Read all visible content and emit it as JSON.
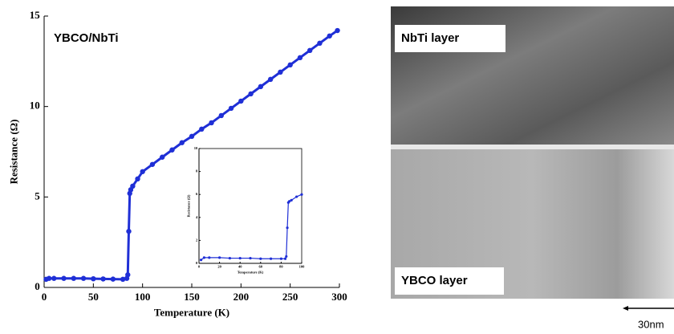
{
  "chart_data": [
    {
      "type": "line",
      "annotation": "YBCO/NbTi",
      "x_label": "Temperature (K)",
      "y_label": "Resistance (Ω)",
      "color": "#1f2fd6",
      "x": [
        2,
        5,
        10,
        20,
        30,
        40,
        50,
        60,
        70,
        80,
        84,
        85,
        86,
        87,
        88,
        90,
        95,
        100,
        110,
        120,
        130,
        140,
        150,
        160,
        170,
        180,
        190,
        200,
        210,
        220,
        230,
        240,
        250,
        260,
        270,
        280,
        290,
        298
      ],
      "values": [
        0.45,
        0.5,
        0.5,
        0.5,
        0.5,
        0.5,
        0.48,
        0.47,
        0.46,
        0.45,
        0.5,
        0.7,
        3.1,
        5.2,
        5.4,
        5.6,
        6.0,
        6.4,
        6.8,
        7.2,
        7.6,
        8.0,
        8.35,
        8.75,
        9.1,
        9.5,
        9.9,
        10.3,
        10.7,
        11.1,
        11.5,
        11.9,
        12.3,
        12.7,
        13.1,
        13.5,
        13.9,
        14.2
      ],
      "xlim": [
        0,
        300
      ],
      "xticks": [
        0,
        50,
        100,
        150,
        200,
        250,
        300
      ],
      "ylim": [
        0,
        15
      ],
      "yticks": [
        0,
        5,
        10,
        15
      ]
    },
    {
      "type": "line",
      "x_label": "Temperature (K)",
      "y_label": "Resistance (Ω)",
      "color": "#1f2fd6",
      "x": [
        2,
        5,
        10,
        20,
        30,
        40,
        50,
        60,
        70,
        80,
        84,
        85,
        86,
        87,
        88,
        90,
        95,
        100
      ],
      "values": [
        0.3,
        0.5,
        0.5,
        0.5,
        0.45,
        0.45,
        0.45,
        0.4,
        0.4,
        0.4,
        0.4,
        0.6,
        3.1,
        5.3,
        5.4,
        5.5,
        5.8,
        6.0
      ],
      "xlim": [
        0,
        100
      ],
      "xticks": [
        0,
        20,
        40,
        60,
        80,
        100
      ],
      "ylim": [
        0,
        10
      ],
      "yticks": [
        0,
        2,
        4,
        6,
        8,
        10
      ]
    }
  ],
  "image": {
    "labels": [
      "NbTi layer",
      "YBCO layer"
    ],
    "scale_bar": "30nm"
  }
}
